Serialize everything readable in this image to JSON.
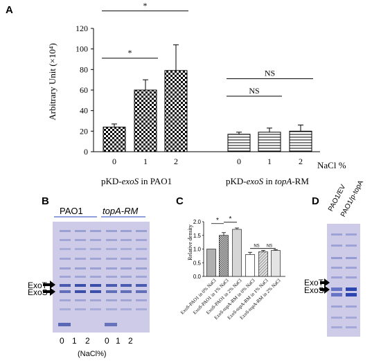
{
  "panels": {
    "a": {
      "letter": "A"
    },
    "b": {
      "letter": "B"
    },
    "c": {
      "letter": "C"
    },
    "d": {
      "letter": "D"
    }
  },
  "chart_data": [
    {
      "type": "bar",
      "panel": "A",
      "ylabel": "Arbitrary Unit (×10⁴)",
      "ylim": [
        0,
        120
      ],
      "yticks": [
        "0",
        "20",
        "40",
        "60",
        "80",
        "100",
        "120"
      ],
      "groups": [
        {
          "label_prefix": "pKD-",
          "label_italic": "exoS",
          "label_suffix": " in PAO1",
          "categories": [
            "0",
            "1",
            "2"
          ],
          "values": [
            24,
            60,
            79
          ],
          "errors": [
            3,
            10,
            25
          ],
          "fill": "checker"
        },
        {
          "label_prefix": "pKD-",
          "label_italic": "exoS",
          "label_suffix": " in ",
          "label_italic2": "topA",
          "label_suffix2": "-RM",
          "categories": [
            "0",
            "1",
            "2"
          ],
          "values": [
            17,
            19,
            20
          ],
          "errors": [
            2,
            4,
            6
          ],
          "fill": "hlines"
        }
      ],
      "axis_unit": "NaCl %",
      "annotations": [
        {
          "text": "*",
          "from": 0,
          "to": 1,
          "group": 0,
          "y": 91
        },
        {
          "text": "*",
          "from": 0,
          "to": 2,
          "group": 0,
          "y": 137
        },
        {
          "text": "NS",
          "from": 0,
          "to": 1,
          "group": 1,
          "y": 54
        },
        {
          "text": "NS",
          "from": 0,
          "to": 2,
          "group": 1,
          "y": 71
        }
      ]
    },
    {
      "type": "bar",
      "panel": "C",
      "ylabel": "Relative density",
      "ylim": [
        0,
        2.0
      ],
      "yticks": [
        "0.0",
        "0.5",
        "1.0",
        "1.5",
        "2.0"
      ],
      "categories": [
        "ExoS-PAO1 in 0% NaCl",
        "ExoS-PAO1 in 1% NaCl",
        "ExoS-PAO1 in 2% NaCl",
        "ExoS-topA-RM in 0% NaCl",
        "ExoS-topA-RM in 1% NaCl",
        "ExoS-topA-RM in 2% NaCl"
      ],
      "values": [
        1.0,
        1.5,
        1.72,
        0.8,
        0.9,
        0.95
      ],
      "errors": [
        0,
        0.1,
        0.05,
        0.08,
        0.05,
        0.03
      ],
      "fills": [
        "#b0b0b0",
        "checker",
        "#d6d6d6",
        "#ffffff",
        "diag",
        "#e4e4e4"
      ],
      "annotations": [
        {
          "text": "*",
          "from": 0,
          "to": 1
        },
        {
          "text": "*",
          "from": 1,
          "to": 2
        },
        {
          "text": "NS",
          "from": 3,
          "to": 4
        },
        {
          "text": "NS",
          "from": 4,
          "to": 5
        }
      ]
    }
  ],
  "gel_b": {
    "strain_labels": [
      "PAO1",
      "topA-RM"
    ],
    "band_labels": [
      "ExoT",
      "ExoS"
    ],
    "lane_labels": [
      "0",
      "1",
      "2",
      "0",
      "1",
      "2"
    ],
    "unit_label": "(NaCl%)"
  },
  "gel_d": {
    "lane_labels": [
      "PAO1/EV",
      "PAO1/p-topA"
    ],
    "band_labels": [
      "ExoT",
      "ExoS"
    ]
  },
  "colors": {
    "gel_bg": "#c9c6e6",
    "band": "#3c4fa8"
  }
}
